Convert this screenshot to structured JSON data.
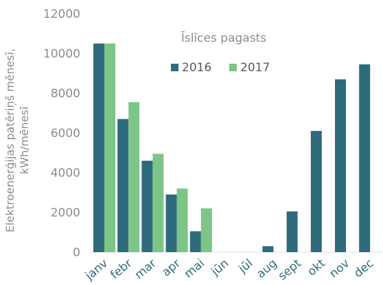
{
  "chart_data": {
    "type": "bar",
    "title": "Īslīces pagasts",
    "ylabel_lines": [
      "Elektroenerģijas patēriņš mēnesī,",
      "kWh/mēnesī"
    ],
    "xlabel": "",
    "categories": [
      "janv",
      "febr",
      "mar",
      "apr",
      "mai",
      "jūn",
      "jūl",
      "aug",
      "sept",
      "okt",
      "nov",
      "dec"
    ],
    "series": [
      {
        "name": "2016",
        "color": "#2d6b7c",
        "values": [
          10500,
          6700,
          4600,
          2900,
          1050,
          0,
          0,
          300,
          2050,
          6100,
          8700,
          9450
        ]
      },
      {
        "name": "2017",
        "color": "#7dc587",
        "values": [
          10500,
          7550,
          4950,
          3200,
          2200,
          null,
          null,
          null,
          null,
          null,
          null,
          null
        ]
      }
    ],
    "ylim": [
      0,
      12000
    ],
    "yticks": [
      "0",
      "2000",
      "4000",
      "6000",
      "8000",
      "10000",
      "12000"
    ],
    "grid": false,
    "legend_position": "top-center"
  }
}
